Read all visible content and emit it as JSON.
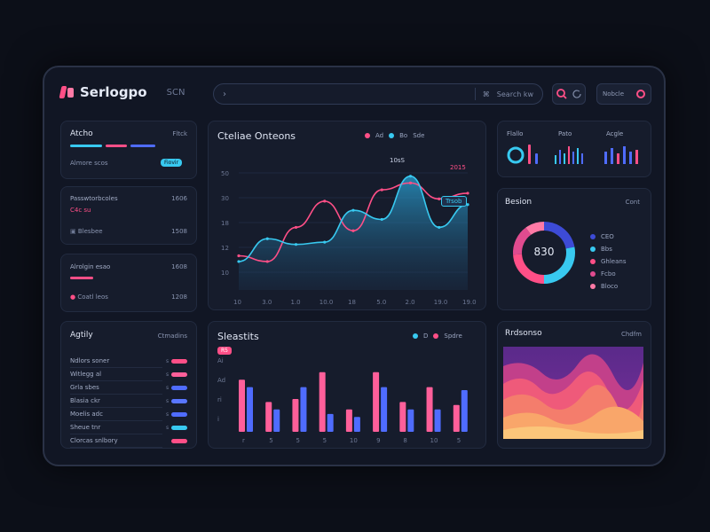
{
  "header": {
    "app_name": "Serlogpo",
    "app_sub": "SCN",
    "search_value": "",
    "search_caret": "›",
    "search_shortcut": "⌘",
    "search_hint": "Search kw",
    "notify_label": "Nobcle"
  },
  "left": {
    "stats_title": "Atcho",
    "stats_badge": "Fltck",
    "stats_sub": "Almore scos",
    "stats_pill": "Fiovir",
    "overview": {
      "label": "Passwtorbcoles",
      "row_a": "C4c su",
      "row_a_val": "1606",
      "row_b": "Blesbee",
      "row_b_val": "1508"
    },
    "agents": {
      "label": "Alrolgin esao",
      "label_val": "1608",
      "row": "Coatl leos",
      "row_val": "1208"
    },
    "activity": {
      "title": "Agtily",
      "badge": "Ctmadins",
      "rows": [
        {
          "label": "Ndlors soner",
          "tick": "s",
          "color": "#ff4f87"
        },
        {
          "label": "Witlegg al",
          "tick": "s",
          "color": "#ff5f9a"
        },
        {
          "label": "Grla sbes",
          "tick": "s",
          "color": "#4f6cff"
        },
        {
          "label": "Blasia ckr",
          "tick": "s",
          "color": "#5976ff"
        },
        {
          "label": "Moelis adc",
          "tick": "s",
          "color": "#4f6cff"
        },
        {
          "label": "Sheue tnr",
          "tick": "s",
          "color": "#38c9f0"
        },
        {
          "label": "Clorcas snlbory",
          "tick": "",
          "color": "#ff4f87"
        }
      ]
    }
  },
  "main": {
    "title": "Cteliae Onteons",
    "legend_a": "Ad",
    "legend_b": "Bo",
    "legend_c": "Sde",
    "peak_label": "10sS",
    "peak_label_b": "2015",
    "tooltip": "Trsob"
  },
  "bars": {
    "title": "Sleastits",
    "legend_a": "D",
    "legend_b": "Spdre",
    "badge": "R5"
  },
  "kpi": {
    "labels": [
      "Flallo",
      "Pato",
      "Acgle"
    ]
  },
  "donut": {
    "title": "Besion",
    "badge": "Cont",
    "center": "830",
    "slices": [
      {
        "label": "CEO",
        "color": "#3d4bd6",
        "value": 22
      },
      {
        "label": "Bbs",
        "color": "#38c9f0",
        "value": 28
      },
      {
        "label": "Ghleans",
        "color": "#ff4f87",
        "value": 24
      },
      {
        "label": "Fcbo",
        "color": "#e04b8f",
        "value": 16
      },
      {
        "label": "Bloco",
        "color": "#ff7aa6",
        "value": 10
      }
    ]
  },
  "heat": {
    "title": "Rrdsonso",
    "badge": "Chdfm"
  },
  "chart_data": [
    {
      "type": "area",
      "title": "Cteliae Onteons",
      "x": [
        "10",
        "3.0",
        "1.0",
        "10.0",
        "18",
        "5.0",
        "2.0",
        "19.0",
        "19.0"
      ],
      "series": [
        {
          "name": "Ad",
          "values": [
            30,
            25,
            55,
            78,
            52,
            88,
            94,
            80,
            85
          ]
        },
        {
          "name": "Bo",
          "values": [
            25,
            45,
            40,
            42,
            70,
            62,
            100,
            55,
            75
          ]
        }
      ],
      "yticks": [
        "10",
        "12",
        "18",
        "30",
        "50"
      ],
      "ylim": [
        0,
        120
      ]
    },
    {
      "type": "bar",
      "title": "Sleastits",
      "categories": [
        "r",
        "5",
        "5",
        "5",
        "10",
        "9",
        "8",
        "10",
        "5"
      ],
      "series": [
        {
          "name": "D",
          "values": [
            35,
            20,
            22,
            40,
            15,
            40,
            20,
            30,
            18
          ]
        },
        {
          "name": "Spdre",
          "values": [
            30,
            15,
            30,
            12,
            10,
            30,
            15,
            15,
            28
          ]
        }
      ],
      "yticks": [
        "Ai",
        "Ad",
        "ri",
        "i"
      ],
      "ylim": [
        0,
        50
      ]
    }
  ],
  "colors": {
    "accent_pink": "#ff4f87",
    "accent_cyan": "#38c9f0",
    "accent_blue": "#4f6cff",
    "bg": "#0c0f18",
    "card": "#161c2c"
  }
}
